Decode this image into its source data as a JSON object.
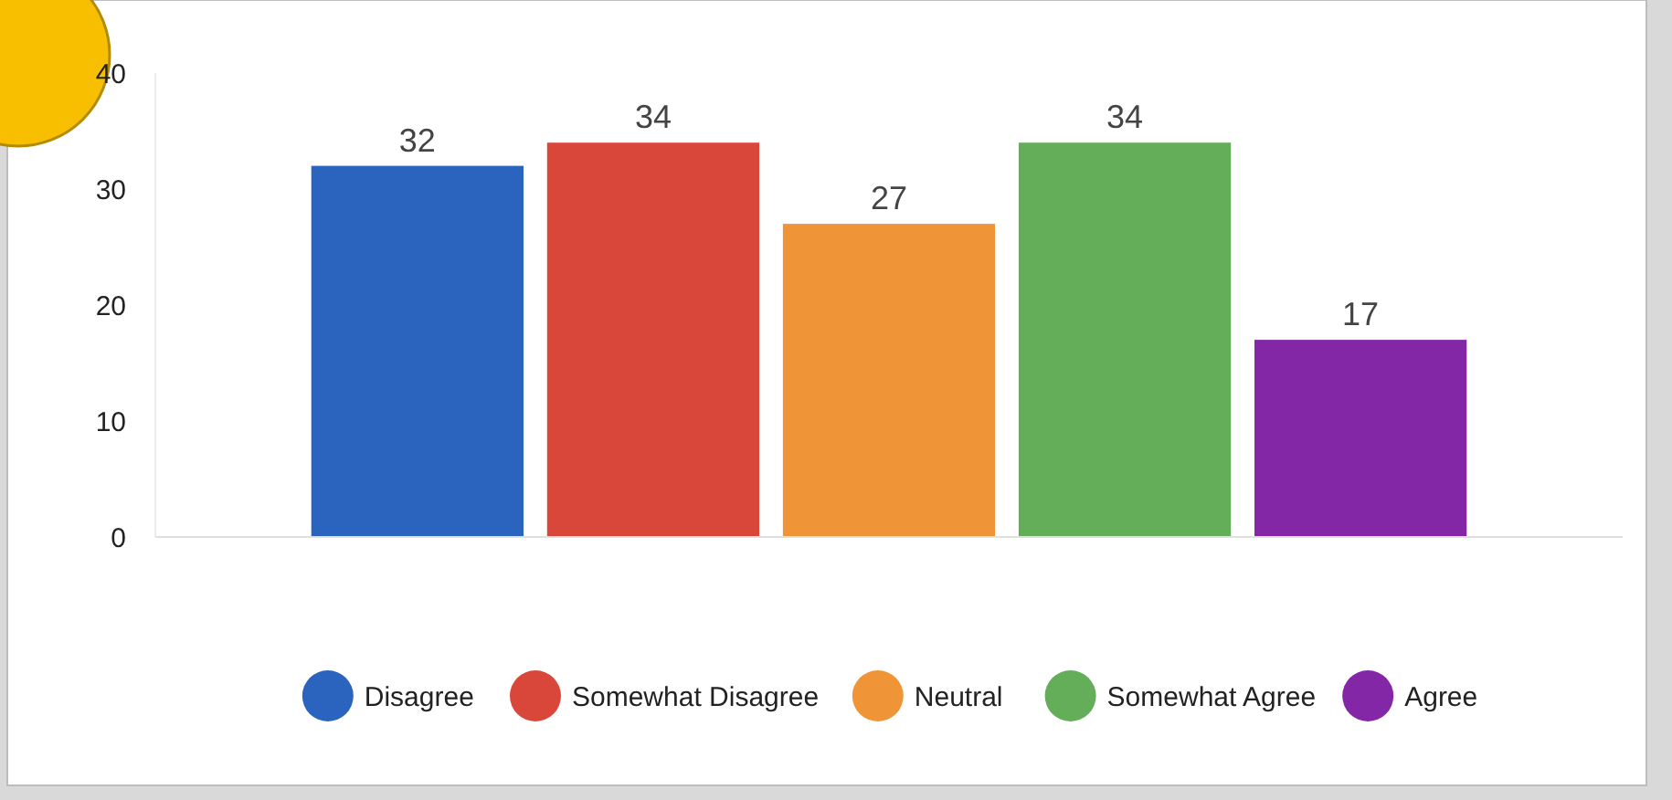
{
  "chart_data": {
    "type": "bar",
    "categories": [
      null
    ],
    "series": [
      {
        "name": "Disagree",
        "color": "#2a64bf",
        "values": [
          32
        ]
      },
      {
        "name": "Somewhat Disagree",
        "color": "#d9473a",
        "values": [
          34
        ]
      },
      {
        "name": "Neutral",
        "color": "#ef9537",
        "values": [
          27
        ]
      },
      {
        "name": "Somewhat Agree",
        "color": "#64ae5a",
        "values": [
          34
        ]
      },
      {
        "name": "Agree",
        "color": "#8327a7",
        "values": [
          17
        ]
      }
    ],
    "ylim": [
      0,
      40
    ],
    "yticks": [
      0,
      10,
      20,
      30,
      40
    ],
    "data_labels": true,
    "legend": "bottom",
    "grid": false
  }
}
